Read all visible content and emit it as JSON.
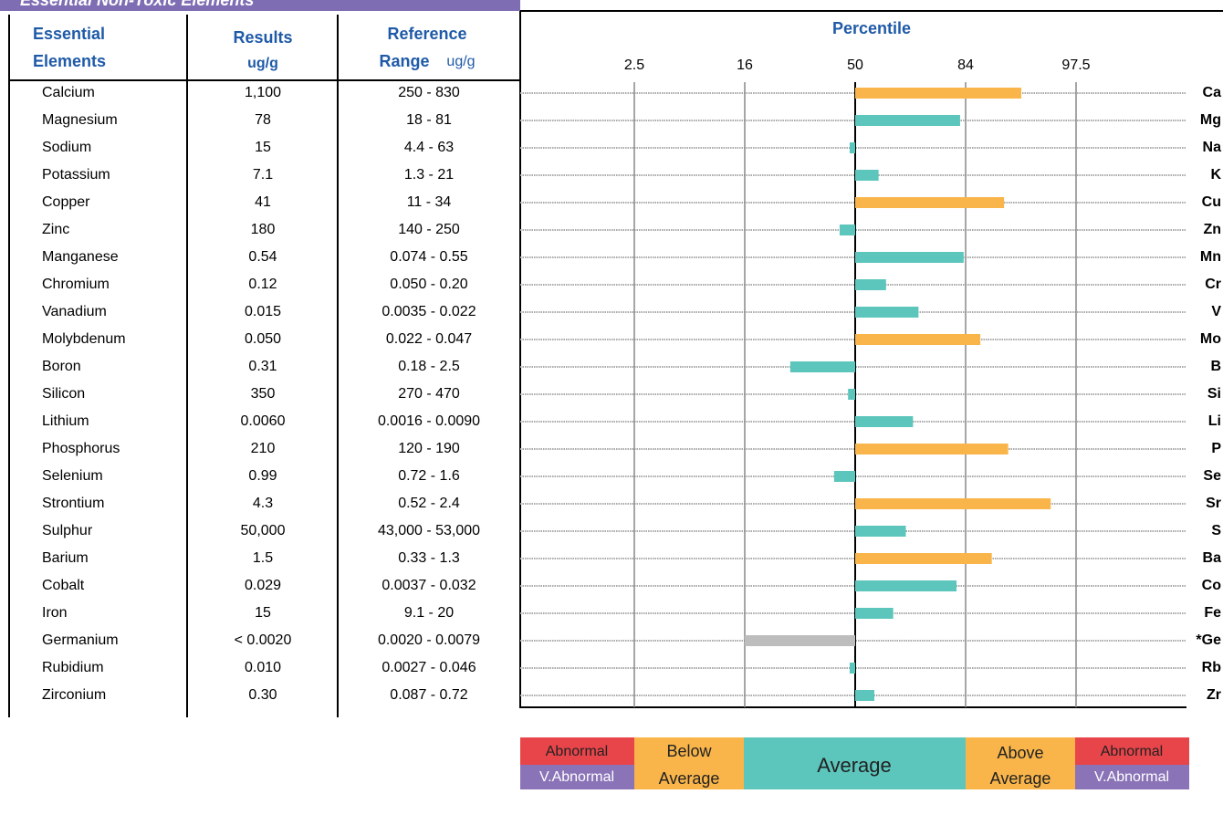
{
  "banner": "Essential Non-Toxic Elements",
  "table": {
    "header": {
      "elements": [
        "Essential",
        "Elements"
      ],
      "results": [
        "Results",
        "ug/g"
      ],
      "reference": [
        "Reference",
        "Range",
        "ug/g"
      ]
    },
    "rows": [
      [
        "Calcium",
        "1,100",
        "250 - 830"
      ],
      [
        "Magnesium",
        "78",
        "18 - 81"
      ],
      [
        "Sodium",
        "15",
        "4.4 - 63"
      ],
      [
        "Potassium",
        "7.1",
        "1.3 - 21"
      ],
      [
        "Copper",
        "41",
        "11 - 34"
      ],
      [
        "Zinc",
        "180",
        "140 - 250"
      ],
      [
        "Manganese",
        "0.54",
        "0.074 - 0.55"
      ],
      [
        "Chromium",
        "0.12",
        "0.050 - 0.20"
      ],
      [
        "Vanadium",
        "0.015",
        "0.0035 - 0.022"
      ],
      [
        "Molybdenum",
        "0.050",
        "0.022 - 0.047"
      ],
      [
        "Boron",
        "0.31",
        "0.18 - 2.5"
      ],
      [
        "Silicon",
        "350",
        "270 - 470"
      ],
      [
        "Lithium",
        "0.0060",
        "0.0016 - 0.0090"
      ],
      [
        "Phosphorus",
        "210",
        "120 - 190"
      ],
      [
        "Selenium",
        "0.99",
        "0.72 - 1.6"
      ],
      [
        "Strontium",
        "4.3",
        "0.52 - 2.4"
      ],
      [
        "Sulphur",
        "50,000",
        "43,000 - 53,000"
      ],
      [
        "Barium",
        "1.5",
        "0.33 - 1.3"
      ],
      [
        "Cobalt",
        "0.029",
        "0.0037 - 0.032"
      ],
      [
        "Iron",
        "15",
        "9.1 - 20"
      ],
      [
        "Germanium",
        "< 0.0020",
        "0.0020 - 0.0079"
      ],
      [
        "Rubidium",
        "0.010",
        "0.0027 - 0.046"
      ],
      [
        "Zirconium",
        "0.30",
        "0.087 - 0.72"
      ]
    ]
  },
  "chart_data": {
    "type": "bar",
    "title": "Percentile",
    "xticks": [
      2.5,
      16,
      50,
      84,
      97.5
    ],
    "categories": [
      "Ca",
      "Mg",
      "Na",
      "K",
      "Cu",
      "Zn",
      "Mn",
      "Cr",
      "V",
      "Mo",
      "B",
      "Si",
      "Li",
      "P",
      "Se",
      "Sr",
      "S",
      "Ba",
      "Co",
      "Fe",
      "*Ge",
      "Rb",
      "Zr"
    ],
    "values": [
      90.8,
      82.3,
      48.3,
      57.2,
      88.7,
      45.2,
      83.4,
      59.5,
      69.5,
      85.8,
      30.0,
      47.8,
      67.8,
      89.2,
      43.5,
      94.4,
      65.6,
      87.2,
      81.2,
      61.7,
      16,
      48.3,
      55.9
    ],
    "colors": [
      "#f9b54a",
      "#5cc6bd",
      "#5cc6bd",
      "#5cc6bd",
      "#f9b54a",
      "#5cc6bd",
      "#5cc6bd",
      "#5cc6bd",
      "#5cc6bd",
      "#f9b54a",
      "#5cc6bd",
      "#5cc6bd",
      "#5cc6bd",
      "#f9b54a",
      "#5cc6bd",
      "#f9b54a",
      "#5cc6bd",
      "#f9b54a",
      "#5cc6bd",
      "#5cc6bd",
      "#bdbdbd",
      "#5cc6bd",
      "#5cc6bd"
    ],
    "grid": true
  },
  "legend": {
    "abnormal_low": "Abnormal",
    "v_abnormal_low": "V.Abnormal",
    "below": [
      "Below",
      "Average"
    ],
    "average": "Average",
    "above": [
      "Above",
      "Average"
    ],
    "abnormal_high": "Abnormal",
    "v_abnormal_high": "V.Abnormal"
  }
}
